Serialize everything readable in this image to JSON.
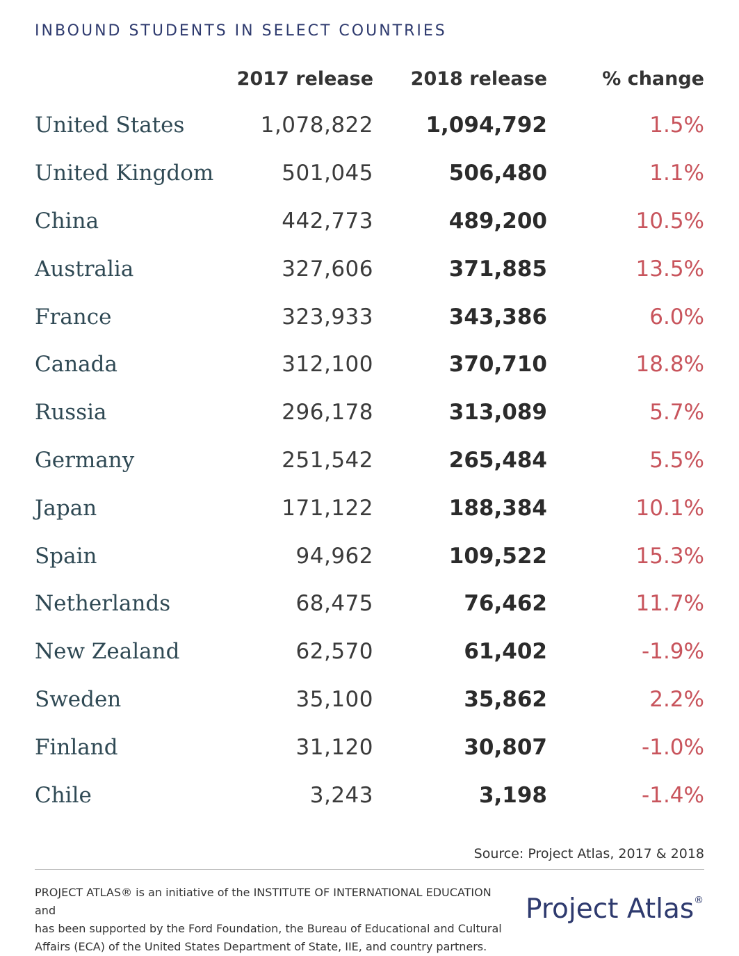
{
  "chart_data": {
    "type": "table",
    "title": "INBOUND STUDENTS IN SELECT COUNTRIES",
    "columns": [
      "",
      "2017 release",
      "2018 release",
      "% change"
    ],
    "rows": [
      {
        "country": "United States",
        "v2017": "1,078,822",
        "v2018": "1,094,792",
        "pct": "1.5%"
      },
      {
        "country": "United Kingdom",
        "v2017": "501,045",
        "v2018": "506,480",
        "pct": "1.1%"
      },
      {
        "country": "China",
        "v2017": "442,773",
        "v2018": "489,200",
        "pct": "10.5%"
      },
      {
        "country": "Australia",
        "v2017": "327,606",
        "v2018": "371,885",
        "pct": "13.5%"
      },
      {
        "country": "France",
        "v2017": "323,933",
        "v2018": "343,386",
        "pct": "6.0%"
      },
      {
        "country": "Canada",
        "v2017": "312,100",
        "v2018": "370,710",
        "pct": "18.8%"
      },
      {
        "country": "Russia",
        "v2017": "296,178",
        "v2018": "313,089",
        "pct": "5.7%"
      },
      {
        "country": "Germany",
        "v2017": "251,542",
        "v2018": "265,484",
        "pct": "5.5%"
      },
      {
        "country": "Japan",
        "v2017": "171,122",
        "v2018": "188,384",
        "pct": "10.1%"
      },
      {
        "country": "Spain",
        "v2017": "94,962",
        "v2018": "109,522",
        "pct": "15.3%"
      },
      {
        "country": "Netherlands",
        "v2017": "68,475",
        "v2018": "76,462",
        "pct": "11.7%"
      },
      {
        "country": "New Zealand",
        "v2017": "62,570",
        "v2018": "61,402",
        "pct": "-1.9%"
      },
      {
        "country": "Sweden",
        "v2017": "35,100",
        "v2018": "35,862",
        "pct": "2.2%"
      },
      {
        "country": "Finland",
        "v2017": "31,120",
        "v2018": "30,807",
        "pct": "-1.0%"
      },
      {
        "country": "Chile",
        "v2017": "3,243",
        "v2018": "3,198",
        "pct": "-1.4%"
      }
    ]
  },
  "source": "Source: Project Atlas, 2017 & 2018",
  "footer": {
    "line1": "PROJECT ATLAS® is an initiative of the INSTITUTE OF INTERNATIONAL EDUCATION and",
    "line2": "has been supported by the Ford Foundation, the Bureau of Educational and Cultural",
    "line3": "Affairs (ECA) of the United States Department of State, IIE, and country partners."
  },
  "logo": {
    "text": "Project Atlas",
    "mark": "®"
  },
  "colors": {
    "title": "#2e3a6e",
    "country": "#2f4954",
    "pct": "#c8545c",
    "values": "#333333"
  }
}
